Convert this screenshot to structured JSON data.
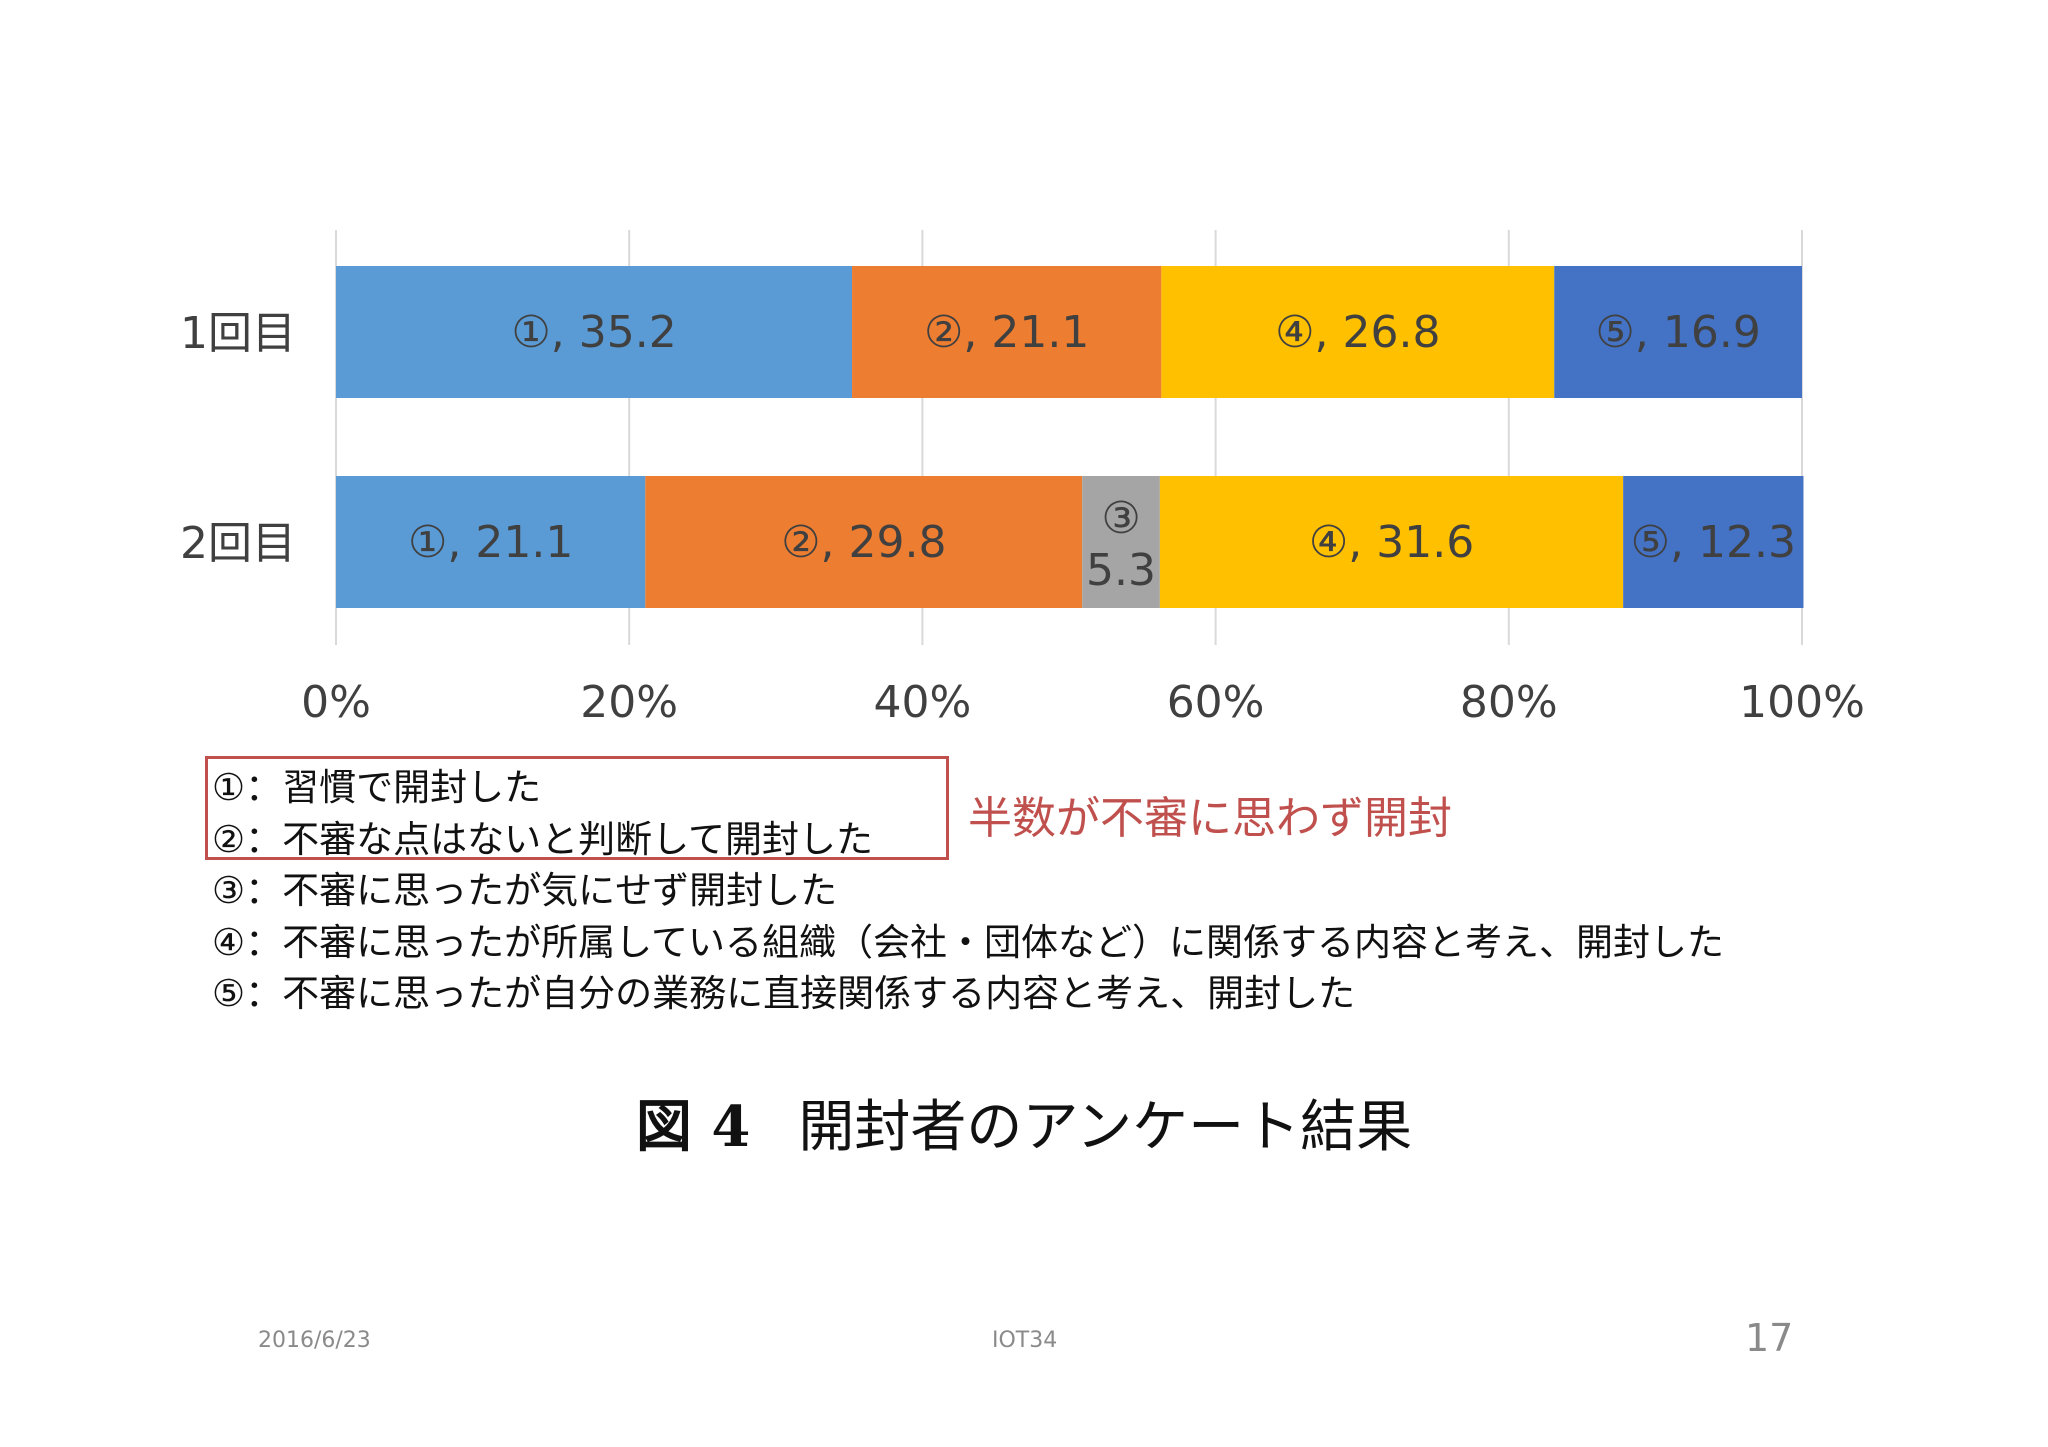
{
  "chart_data": {
    "type": "bar",
    "orientation": "horizontal-stacked-100",
    "categories": [
      "1回目",
      "2回目"
    ],
    "series": [
      {
        "name": "①",
        "color": "#5b9bd5",
        "values": [
          35.2,
          21.1
        ],
        "labels": [
          "①, 35.2",
          "①, 21.1"
        ]
      },
      {
        "name": "②",
        "color": "#ed7d31",
        "values": [
          21.1,
          29.8
        ],
        "labels": [
          "②, 21.1",
          "②, 29.8"
        ]
      },
      {
        "name": "③",
        "color": "#a5a5a5",
        "values": [
          0,
          5.3
        ],
        "labels": [
          "",
          "③\n5.3"
        ]
      },
      {
        "name": "④",
        "color": "#ffc000",
        "values": [
          26.8,
          31.6
        ],
        "labels": [
          "④, 26.8",
          "④, 31.6"
        ]
      },
      {
        "name": "⑤",
        "color": "#4472c4",
        "values": [
          16.9,
          12.3
        ],
        "labels": [
          "⑤, 16.9",
          "⑤, 12.3"
        ]
      }
    ],
    "xticks": [
      "0%",
      "20%",
      "40%",
      "60%",
      "80%",
      "100%"
    ],
    "xlim": [
      0,
      100
    ],
    "grid": true
  },
  "legend": {
    "items": [
      "①：習慣で開封した",
      "②：不審な点はないと判断して開封した",
      "③：不審に思ったが気にせず開封した",
      "④：不審に思ったが所属している組織（会社・団体など）に関係する内容と考え、開封した",
      "⑤：不審に思ったが自分の業務に直接関係する内容と考え、開封した"
    ]
  },
  "annotation": "半数が不審に思わず開封",
  "caption": {
    "figure": "図 4",
    "title": "開封者のアンケート結果"
  },
  "footer": {
    "date": "2016/6/23",
    "conference": "IOT34",
    "page": "17"
  },
  "colors": {
    "highlight": "#c0504d",
    "grid": "#d9d9d9",
    "text": "#404040"
  }
}
